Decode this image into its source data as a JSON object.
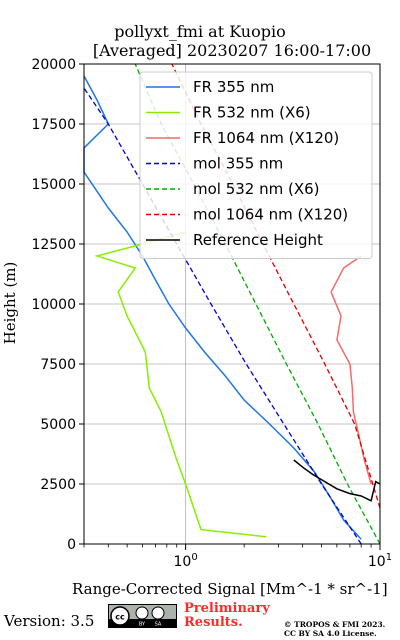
{
  "chart_data": {
    "type": "line",
    "title": "pollyxt_fmi at Kuopio",
    "subtitle": "[Averaged] 20230207 16:00-17:00",
    "xlabel": "Range-Corrected Signal [Mm^-1 * sr^-1]",
    "ylabel": "Height (m)",
    "xscale": "log",
    "xlim": [
      0.3,
      10
    ],
    "ylim": [
      0,
      20000
    ],
    "x_ticks": [
      {
        "value": 1,
        "label": "10^0"
      },
      {
        "value": 10,
        "label": "10^1"
      }
    ],
    "y_ticks": [
      0,
      2500,
      5000,
      7500,
      10000,
      12500,
      15000,
      17500,
      20000
    ],
    "grid": true,
    "legend_position": "top-right",
    "series": [
      {
        "name": "FR 355 nm",
        "color": "#1f77e0",
        "style": "solid",
        "x": [
          8.0,
          6.5,
          5.5,
          4.6,
          3.6,
          2.7,
          2.0,
          1.6,
          1.25,
          1.0,
          0.82,
          0.7,
          0.6,
          0.5,
          0.4,
          0.3,
          0.3,
          0.4,
          0.35,
          0.3
        ],
        "y": [
          200,
          1000,
          2000,
          3000,
          4000,
          5000,
          6000,
          7000,
          8000,
          9000,
          10000,
          11000,
          12000,
          13000,
          14000,
          15500,
          16500,
          17500,
          18500,
          19500
        ]
      },
      {
        "name": "FR 532 nm (X6)",
        "color": "#88ee00",
        "style": "solid",
        "x": [
          2.6,
          1.2,
          1.1,
          1.0,
          0.9,
          0.82,
          0.75,
          0.65,
          0.62,
          0.5,
          0.45,
          0.55,
          0.35,
          0.6,
          1.0
        ],
        "y": [
          300,
          600,
          1500,
          2500,
          3500,
          4500,
          5500,
          6500,
          8000,
          9500,
          10500,
          11500,
          12000,
          12500,
          13000
        ]
      },
      {
        "name": "FR 1064 nm (X120)",
        "color": "#f46a6a",
        "style": "solid",
        "x": [
          9.0,
          8.3,
          7.8,
          7.3,
          7.2,
          7.0,
          6.0,
          6.3,
          5.6,
          6.5,
          8.0
        ],
        "y": [
          2500,
          3500,
          4500,
          5500,
          6500,
          7500,
          8500,
          9500,
          10500,
          11500,
          12000
        ]
      },
      {
        "name": "mol 355 nm",
        "color": "#0000cc",
        "style": "dashed",
        "x": [
          8.0,
          5.0,
          3.2,
          2.05,
          1.35,
          0.9,
          0.6,
          0.4,
          0.3
        ],
        "y": [
          0,
          2500,
          5000,
          7500,
          10000,
          12500,
          15000,
          17500,
          19000
        ]
      },
      {
        "name": "mol 532 nm (X6)",
        "color": "#00aa00",
        "style": "dashed",
        "x": [
          10.0,
          6.8,
          4.8,
          3.3,
          2.3,
          1.6,
          1.1,
          0.75,
          0.55
        ],
        "y": [
          0,
          2500,
          5000,
          7500,
          10000,
          12500,
          15000,
          17500,
          20000
        ]
      },
      {
        "name": "mol 1064 nm (X120)",
        "color": "#dd0000",
        "style": "dashed",
        "x": [
          10.0,
          7.4,
          5.2,
          3.6,
          2.5,
          1.75,
          1.2,
          0.85
        ],
        "y": [
          1500,
          5000,
          7500,
          10000,
          12500,
          15000,
          17500,
          20000
        ]
      },
      {
        "name": "Reference Height",
        "color": "#000000",
        "style": "solid",
        "x": [
          3.6,
          4.0,
          4.5,
          5.2,
          6.0,
          7.0,
          8.0,
          9.0,
          9.5,
          10.0
        ],
        "y": [
          3500,
          3200,
          2900,
          2600,
          2300,
          2100,
          2000,
          1800,
          2600,
          2500
        ]
      }
    ]
  },
  "footer": {
    "version": "Version: 3.5",
    "cc_badge": "cc by sa",
    "preliminary_line1": "Preliminary",
    "preliminary_line2": "Results.",
    "copyright_line1": "© TROPOS & FMI 2023.",
    "copyright_line2": "CC BY SA 4.0 License."
  }
}
